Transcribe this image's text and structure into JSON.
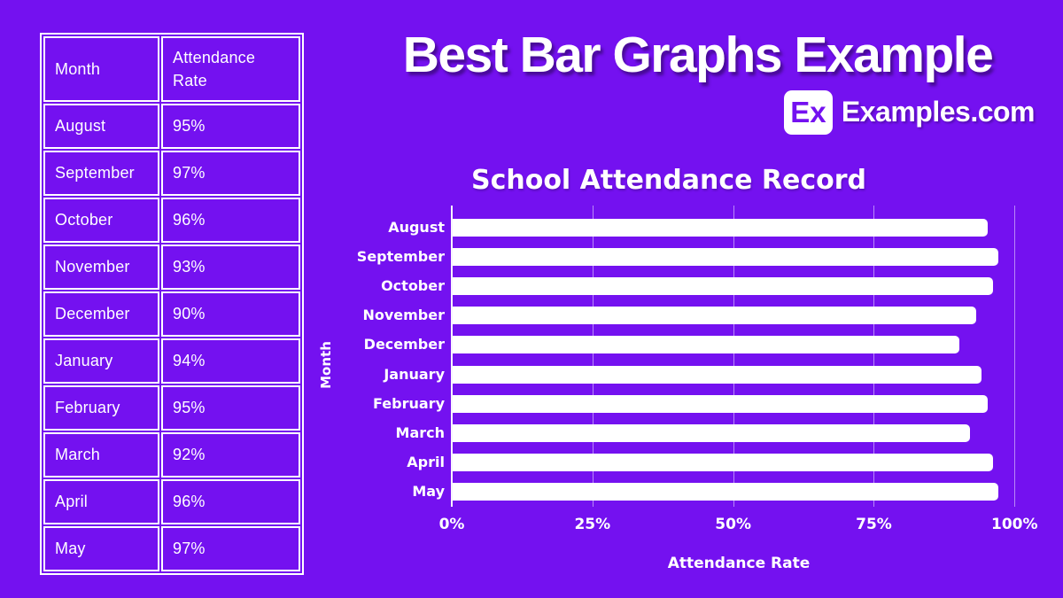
{
  "page": {
    "background_color": "#7411F0",
    "title": "Best Bar Graphs Example",
    "brand": {
      "logo_text": "Ex",
      "site_name": "Examples.com"
    }
  },
  "table": {
    "columns": [
      "Month",
      "Attendance Rate"
    ],
    "rows": [
      [
        "August",
        "95%"
      ],
      [
        "September",
        "97%"
      ],
      [
        "October",
        "96%"
      ],
      [
        "November",
        "93%"
      ],
      [
        "December",
        "90%"
      ],
      [
        "January",
        "94%"
      ],
      [
        "February",
        "95%"
      ],
      [
        "March",
        "92%"
      ],
      [
        "April",
        "96%"
      ],
      [
        "May",
        "97%"
      ]
    ]
  },
  "chart_data": {
    "type": "bar",
    "orientation": "horizontal",
    "title": "School Attendance Record",
    "xlabel": "Attendance Rate",
    "ylabel": "Month",
    "categories": [
      "August",
      "September",
      "October",
      "November",
      "December",
      "January",
      "February",
      "March",
      "April",
      "May"
    ],
    "values": [
      95,
      97,
      96,
      93,
      90,
      94,
      95,
      92,
      96,
      97
    ],
    "unit": "%",
    "xlim": [
      0,
      102
    ],
    "xticks": [
      {
        "value": 0,
        "label": "0%"
      },
      {
        "value": 25,
        "label": "25%"
      },
      {
        "value": 50,
        "label": "50%"
      },
      {
        "value": 75,
        "label": "75%"
      },
      {
        "value": 100,
        "label": "100%"
      }
    ],
    "grid": true,
    "legend": false,
    "bar_color": "#ffffff",
    "gridline_color": "rgba(255,255,255,0.5)",
    "axis_color": "#ffffff",
    "text_color": "#ffffff"
  }
}
